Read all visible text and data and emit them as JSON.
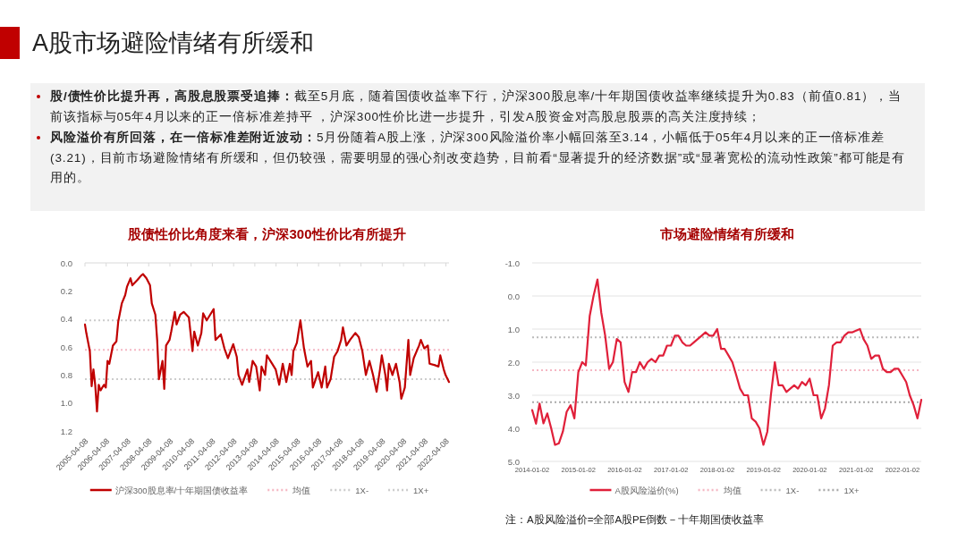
{
  "chart_data": [
    {
      "type": "other",
      "title": "A股市场避险情绪有所缓和",
      "annotations": [
        "股/债性价比提升再，高股息股票受追捧：",
        "截至5月底，随着国债收益率下行，沪深300股息率/十年期国债收益率继续提升为0.83（前值0.81），当前该指标与05年4月以来的正一倍标准差持平 ，沪深300性价比进一步提升，引发A股资金对高股息股票的高关注度持续；",
        "风险溢价有所回落，在一倍标准差附近波动：",
        "5月份随着A股上涨，沪深300风险溢价率小幅回落至3.14，小幅低于05年4月以来的正一倍标准差(3.21)，目前市场避险情绪有所缓和，但仍较强，需要明显的强心剂改变趋势，目前看“显著提升的经济数据”或“显著宽松的流动性政策”都可能是有用的。"
      ]
    },
    {
      "type": "line",
      "title": "股债性价比角度来看，沪深300性价比有所提升",
      "grid": false,
      "legend": "bottom",
      "ylim": [
        1.2,
        0
      ],
      "yticks": [
        {
          "value": 0,
          "label": "0.0"
        },
        0.2,
        0.4,
        0.6,
        0.8,
        {
          "value": 1,
          "label": "1.0"
        },
        1.2
      ],
      "xlim": [
        "2005-04-08",
        "2022-05-31"
      ],
      "xticks": [
        "2005-04-08",
        "2006-04-08",
        "2007-04-08",
        "2008-04-08",
        "2009-04-08",
        "2010-04-08",
        "2011-04-08",
        "2012-04-08",
        "2013-04-08",
        "2014-04-08",
        "2015-04-08",
        "2016-04-08",
        "2017-04-08",
        "2018-04-08",
        "2019-04-08",
        "2020-04-08",
        "2021-04-08",
        "2022-04-08"
      ],
      "ref_lines": [
        {
          "axis": "y",
          "value": 0.62,
          "label": "均值",
          "color": "#f5b7c3",
          "line_style": "dotted"
        },
        {
          "axis": "y",
          "value": 0.41,
          "label": "1X-",
          "color": "#cccccc",
          "line_style": "dotted"
        },
        {
          "axis": "y",
          "value": 0.83,
          "label": "1X+",
          "color": "#cccccc",
          "line_style": "dotted"
        }
      ],
      "series": [
        {
          "name": "沪深300股息率/十年期国债收益率",
          "color": "#c00000",
          "x": [
            "2005-04-08",
            "2005-05",
            "2005-07",
            "2005-08",
            "2005-09",
            "2005-10",
            "2005-11",
            "2005-12",
            "2006-01",
            "2006-03",
            "2006-04",
            "2006-05",
            "2006-06",
            "2006-08",
            "2006-10",
            "2006-11",
            "2007-01",
            "2007-03",
            "2007-04",
            "2007-06",
            "2007-07",
            "2007-10",
            "2007-12",
            "2008-01",
            "2008-03",
            "2008-05",
            "2008-06",
            "2008-08",
            "2008-09",
            "2008-10",
            "2008-12",
            "2009-01",
            "2009-02",
            "2009-04",
            "2009-05",
            "2009-07",
            "2009-08",
            "2009-10",
            "2009-12",
            "2010-03",
            "2010-05",
            "2010-06",
            "2010-08",
            "2010-10",
            "2010-11",
            "2011-01",
            "2011-03",
            "2011-05",
            "2011-06",
            "2011-09",
            "2011-11",
            "2012-01",
            "2012-04",
            "2012-06",
            "2012-07",
            "2012-09",
            "2012-12",
            "2013-01",
            "2013-03",
            "2013-05",
            "2013-07",
            "2013-08",
            "2013-10",
            "2013-11",
            "2014-02",
            "2014-04",
            "2014-06",
            "2014-08",
            "2014-10",
            "2014-12",
            "2015-01",
            "2015-02",
            "2015-04",
            "2015-05",
            "2015-06",
            "2015-08",
            "2015-10",
            "2015-12",
            "2016-01",
            "2016-04",
            "2016-06",
            "2016-08",
            "2016-09",
            "2016-11",
            "2017-01",
            "2017-03",
            "2017-05",
            "2017-06",
            "2017-08",
            "2017-10",
            "2018-01",
            "2018-03",
            "2018-05",
            "2018-07",
            "2018-09",
            "2018-11",
            "2019-01",
            "2019-03",
            "2019-04",
            "2019-06",
            "2019-07",
            "2019-08",
            "2019-10",
            "2019-12",
            "2020-02",
            "2020-03",
            "2020-05",
            "2020-07",
            "2020-08",
            "2020-10",
            "2021-01",
            "2021-02",
            "2021-04",
            "2021-06",
            "2021-07",
            "2021-10",
            "2021-12",
            "2022-01",
            "2022-03",
            "2022-04",
            "2022-05-31"
          ],
          "values": [
            0.44,
            0.5,
            0.63,
            0.88,
            0.76,
            0.87,
            1.06,
            0.87,
            0.91,
            0.87,
            0.89,
            0.7,
            0.72,
            0.59,
            0.56,
            0.42,
            0.29,
            0.23,
            0.17,
            0.11,
            0.16,
            0.12,
            0.09,
            0.08,
            0.11,
            0.16,
            0.29,
            0.37,
            0.55,
            0.83,
            0.7,
            0.9,
            0.59,
            0.55,
            0.49,
            0.35,
            0.44,
            0.37,
            0.35,
            0.39,
            0.63,
            0.49,
            0.59,
            0.5,
            0.36,
            0.41,
            0.37,
            0.33,
            0.55,
            0.51,
            0.61,
            0.68,
            0.58,
            0.67,
            0.8,
            0.87,
            0.76,
            0.85,
            0.7,
            0.74,
            0.91,
            0.74,
            0.8,
            0.66,
            0.72,
            0.76,
            0.87,
            0.72,
            0.85,
            0.72,
            0.8,
            0.63,
            0.57,
            0.49,
            0.41,
            0.61,
            0.74,
            0.7,
            0.89,
            0.78,
            0.89,
            0.74,
            0.89,
            0.83,
            0.67,
            0.63,
            0.55,
            0.46,
            0.59,
            0.55,
            0.5,
            0.53,
            0.63,
            0.8,
            0.7,
            0.8,
            0.92,
            0.76,
            0.66,
            0.8,
            0.91,
            0.72,
            0.8,
            0.72,
            0.85,
            0.97,
            0.89,
            0.55,
            0.8,
            0.68,
            0.59,
            0.55,
            0.61,
            0.59,
            0.72,
            0.73,
            0.74,
            0.66,
            0.76,
            0.8,
            0.85
          ]
        }
      ]
    },
    {
      "type": "line",
      "title": "市场避险情绪有所缓和",
      "grid": "y",
      "legend": "bottom",
      "ylim": [
        5,
        -1
      ],
      "yticks": [
        {
          "value": -1,
          "label": "-1.0"
        },
        {
          "value": 0,
          "label": "0.0"
        },
        {
          "value": 1,
          "label": "1.0"
        },
        {
          "value": 2,
          "label": "2.0"
        },
        {
          "value": 3,
          "label": "3.0"
        },
        {
          "value": 4,
          "label": "4.0"
        },
        {
          "value": 5,
          "label": "5.0"
        }
      ],
      "xlim": [
        "2014-01-02",
        "2022-05-31"
      ],
      "xticks": [
        "2014-01-02",
        "2015-01-02",
        "2016-01-02",
        "2017-01-02",
        "2018-01-02",
        "2019-01-02",
        "2020-01-02",
        "2021-01-02",
        "2022-01-02"
      ],
      "ref_lines": [
        {
          "axis": "y",
          "value": 2.24,
          "label": "均值",
          "color": "#f5b7c3",
          "line_style": "dotted"
        },
        {
          "axis": "y",
          "value": 1.25,
          "label": "1X-",
          "color": "#bbbbbb",
          "line_style": "dotted"
        },
        {
          "axis": "y",
          "value": 3.21,
          "label": "1X+",
          "color": "#aaaaaa",
          "line_style": "dotted"
        }
      ],
      "annotations": [
        "注：A股风险溢价=全部A股PE倒数－十年期国债收益率"
      ],
      "series": [
        {
          "name": "A股风险溢价(%)",
          "color": "#e0203a",
          "x": [
            "2014-01-02",
            "2014-02",
            "2014-03",
            "2014-04",
            "2014-05",
            "2014-06",
            "2014-07",
            "2014-08",
            "2014-09",
            "2014-10",
            "2014-11",
            "2014-12",
            "2015-01",
            "2015-02",
            "2015-03",
            "2015-04",
            "2015-05",
            "2015-06",
            "2015-07",
            "2015-08",
            "2015-09",
            "2015-10",
            "2015-11",
            "2015-12",
            "2016-01",
            "2016-02",
            "2016-03",
            "2016-04",
            "2016-05",
            "2016-06",
            "2016-07",
            "2016-08",
            "2016-09",
            "2016-10",
            "2016-11",
            "2016-12",
            "2017-01",
            "2017-02",
            "2017-03",
            "2017-04",
            "2017-05",
            "2017-06",
            "2017-07",
            "2017-08",
            "2017-09",
            "2017-10",
            "2017-11",
            "2017-12",
            "2018-01",
            "2018-02",
            "2018-03",
            "2018-04",
            "2018-05",
            "2018-06",
            "2018-07",
            "2018-08",
            "2018-09",
            "2018-10",
            "2018-11",
            "2018-12",
            "2019-01",
            "2019-02",
            "2019-03",
            "2019-04",
            "2019-05",
            "2019-06",
            "2019-07",
            "2019-08",
            "2019-09",
            "2019-10",
            "2019-11",
            "2019-12",
            "2020-01",
            "2020-02",
            "2020-03",
            "2020-04",
            "2020-05",
            "2020-06",
            "2020-07",
            "2020-08",
            "2020-09",
            "2020-10",
            "2020-11",
            "2020-12",
            "2021-01",
            "2021-02",
            "2021-03",
            "2021-04",
            "2021-05",
            "2021-06",
            "2021-07",
            "2021-08",
            "2021-09",
            "2021-10",
            "2021-11",
            "2021-12",
            "2022-01",
            "2022-02",
            "2022-03",
            "2022-04",
            "2022-05",
            "2022-05-31"
          ],
          "values": [
            3.45,
            3.86,
            3.25,
            3.85,
            3.55,
            4.0,
            4.5,
            4.45,
            4.1,
            3.5,
            3.3,
            3.7,
            2.3,
            2.0,
            2.1,
            0.6,
            0.0,
            -0.5,
            0.5,
            1.2,
            2.2,
            2.0,
            1.3,
            1.4,
            2.6,
            2.9,
            2.3,
            2.3,
            2.0,
            2.2,
            2.0,
            1.9,
            2.0,
            1.8,
            1.8,
            1.5,
            1.5,
            1.2,
            1.2,
            1.4,
            1.5,
            1.5,
            1.4,
            1.3,
            1.2,
            1.1,
            1.2,
            1.2,
            1.0,
            1.6,
            1.6,
            1.8,
            2.0,
            2.4,
            2.8,
            3.0,
            3.0,
            3.7,
            3.8,
            4.0,
            4.5,
            4.1,
            3.0,
            2.0,
            2.7,
            2.7,
            2.9,
            2.8,
            2.7,
            2.8,
            2.6,
            2.7,
            2.5,
            3.0,
            3.0,
            3.7,
            3.4,
            2.7,
            1.5,
            1.4,
            1.4,
            1.2,
            1.1,
            1.1,
            1.05,
            1.0,
            1.3,
            1.5,
            1.9,
            1.8,
            1.8,
            2.2,
            2.3,
            2.3,
            2.2,
            2.2,
            2.4,
            2.6,
            3.0,
            3.3,
            3.7,
            3.14
          ]
        }
      ]
    }
  ]
}
